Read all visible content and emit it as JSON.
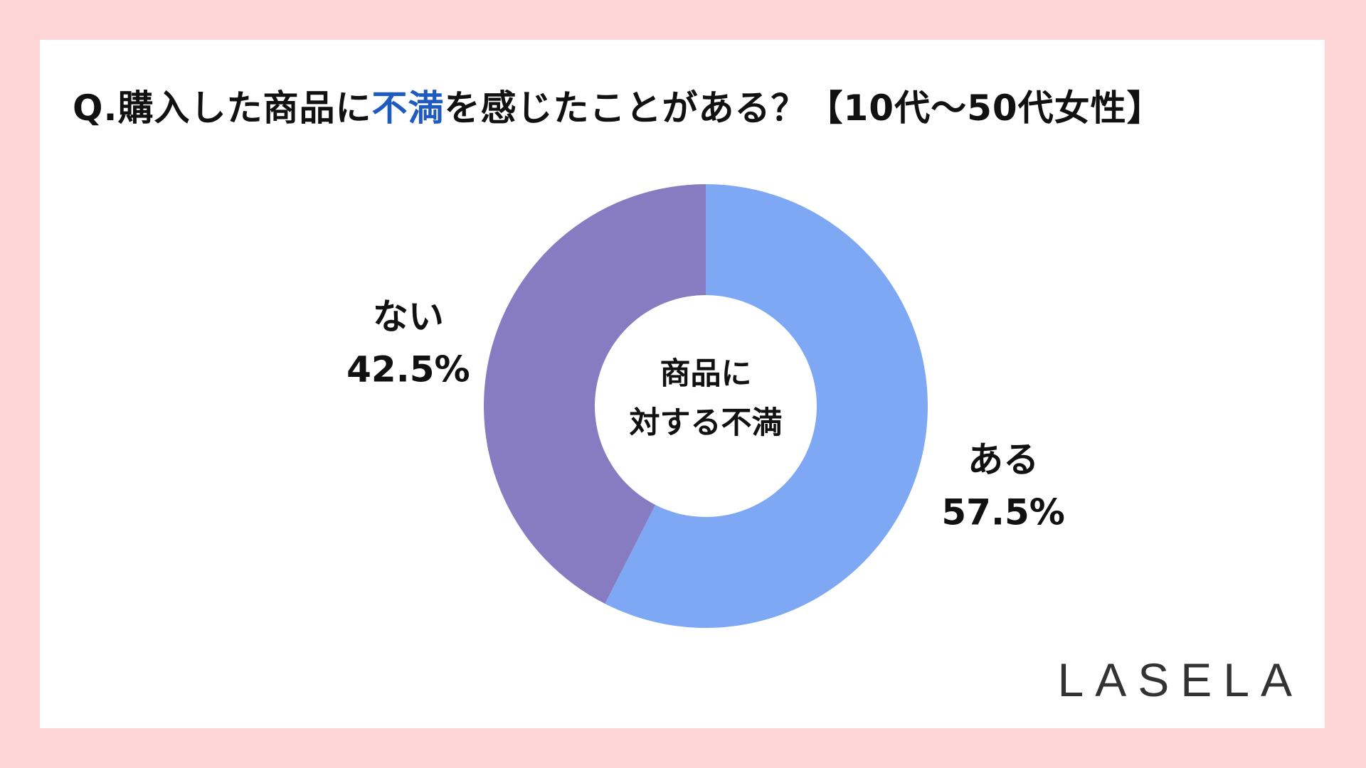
{
  "title": {
    "prefix": "Q.購入した商品に",
    "highlight": "不満",
    "suffix": "を感じたことがある？【10代〜50代女性】"
  },
  "center_label": {
    "line1": "商品に",
    "line2": "対する不満"
  },
  "logo": "LASELA",
  "chart_data": {
    "type": "pie",
    "donut": true,
    "categories": [
      "ある",
      "ない"
    ],
    "values": [
      57.5,
      42.5
    ],
    "labels": [
      "57.5%",
      "42.5%"
    ],
    "colors": [
      "#7ea8f4",
      "#877bc1"
    ],
    "start_angle_deg": 0,
    "direction": "clockwise"
  }
}
